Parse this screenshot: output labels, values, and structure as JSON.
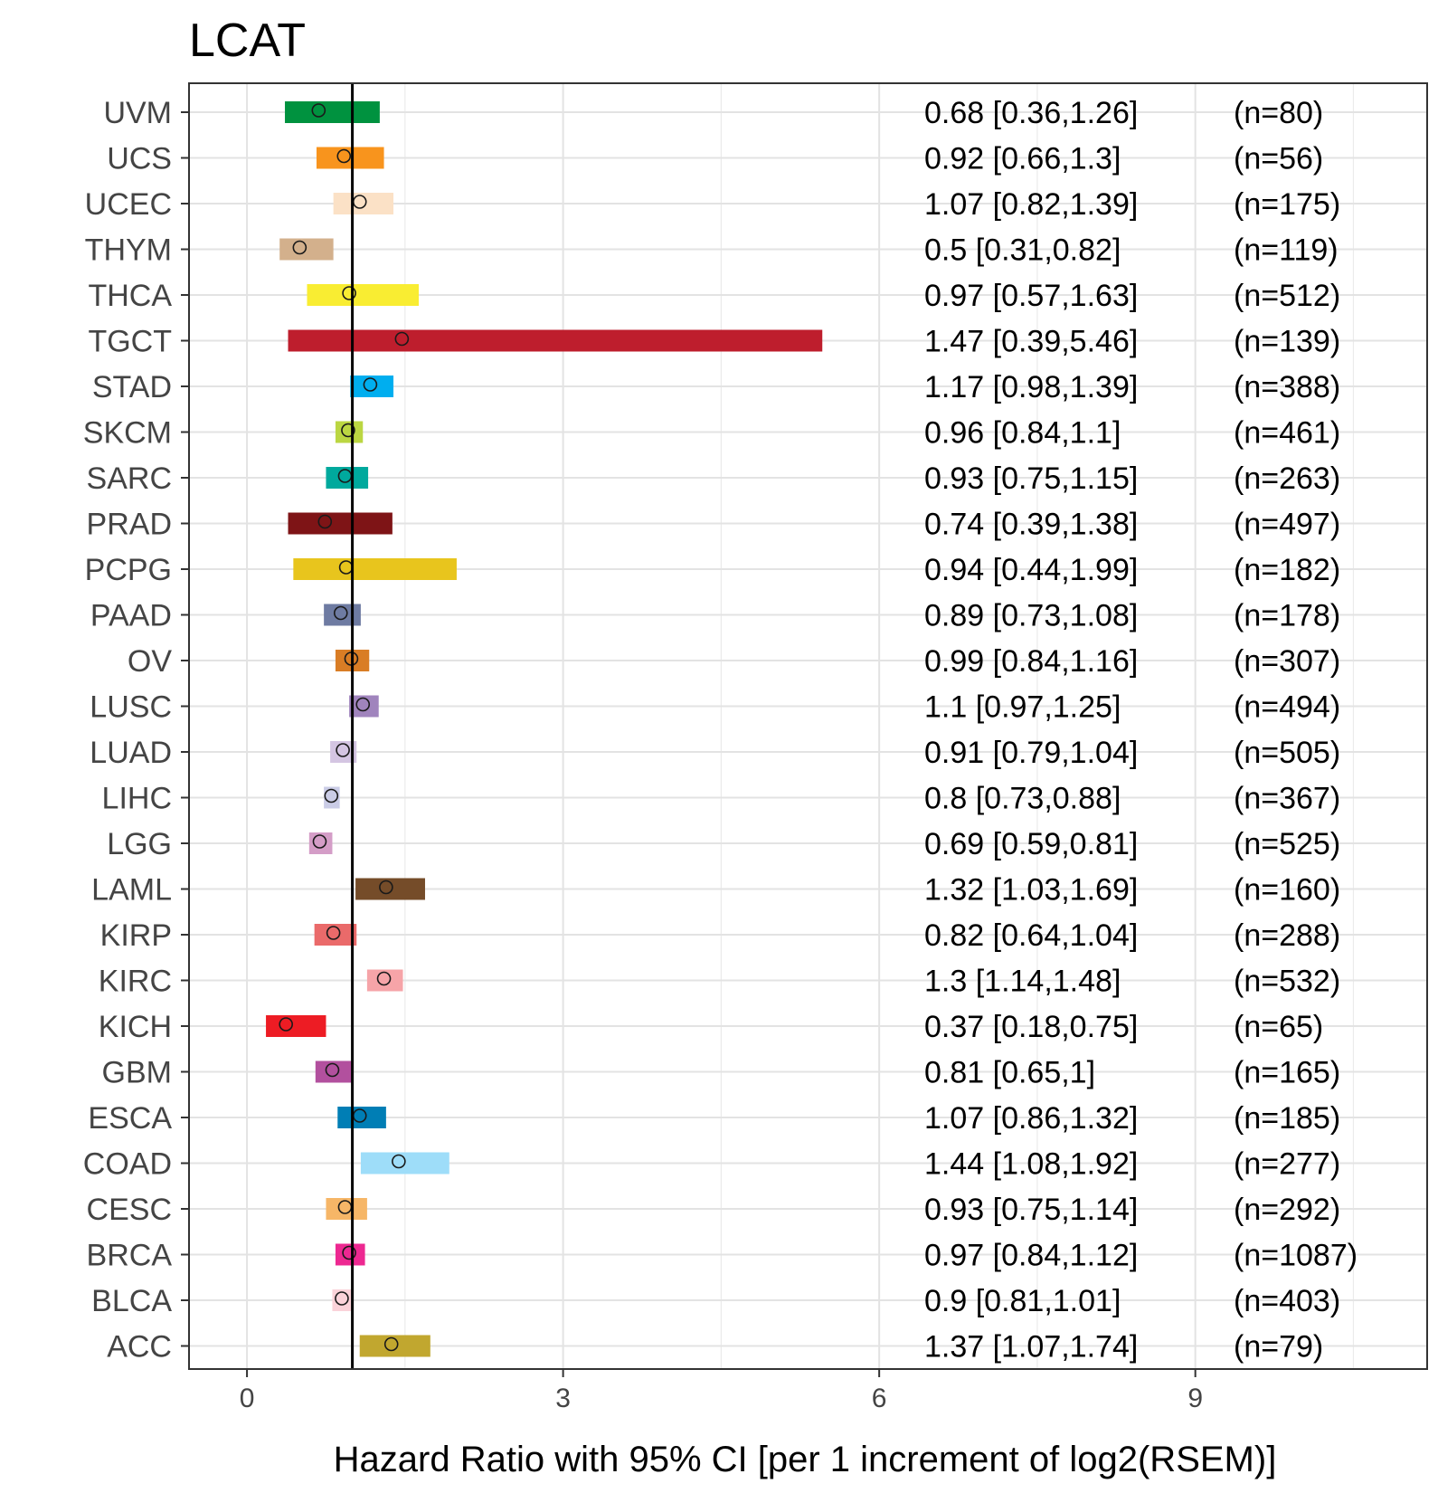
{
  "chart_data": {
    "type": "forest",
    "title": "LCAT",
    "xlabel": "Hazard Ratio with 95% CI [per 1 increment of log2(RSEM)]",
    "ylabel": "",
    "xlim": [
      -0.55,
      11.2
    ],
    "xticks": [
      0,
      3,
      6,
      9
    ],
    "reference_line": 1,
    "grid": true,
    "rows": [
      {
        "label": "UVM",
        "hr": 0.68,
        "lower": 0.36,
        "upper": 1.26,
        "text": "0.68 [0.36,1.26]",
        "n": "(n=80)",
        "color": "#00923F"
      },
      {
        "label": "UCS",
        "hr": 0.92,
        "lower": 0.66,
        "upper": 1.3,
        "text": "0.92 [0.66,1.3]",
        "n": "(n=56)",
        "color": "#F8941D"
      },
      {
        "label": "UCEC",
        "hr": 1.07,
        "lower": 0.82,
        "upper": 1.39,
        "text": "1.07 [0.82,1.39]",
        "n": "(n=175)",
        "color": "#FBE1C6"
      },
      {
        "label": "THYM",
        "hr": 0.5,
        "lower": 0.31,
        "upper": 0.82,
        "text": "0.5 [0.31,0.82]",
        "n": "(n=119)",
        "color": "#D3B08C"
      },
      {
        "label": "THCA",
        "hr": 0.97,
        "lower": 0.57,
        "upper": 1.63,
        "text": "0.97 [0.57,1.63]",
        "n": "(n=512)",
        "color": "#F9ED32"
      },
      {
        "label": "TGCT",
        "hr": 1.47,
        "lower": 0.39,
        "upper": 5.46,
        "text": "1.47 [0.39,5.46]",
        "n": "(n=139)",
        "color": "#BE1E2D"
      },
      {
        "label": "STAD",
        "hr": 1.17,
        "lower": 0.98,
        "upper": 1.39,
        "text": "1.17 [0.98,1.39]",
        "n": "(n=388)",
        "color": "#00AEEF"
      },
      {
        "label": "SKCM",
        "hr": 0.96,
        "lower": 0.84,
        "upper": 1.1,
        "text": "0.96 [0.84,1.1]",
        "n": "(n=461)",
        "color": "#BBD642"
      },
      {
        "label": "SARC",
        "hr": 0.93,
        "lower": 0.75,
        "upper": 1.15,
        "text": "0.93 [0.75,1.15]",
        "n": "(n=263)",
        "color": "#00A99D"
      },
      {
        "label": "PRAD",
        "hr": 0.74,
        "lower": 0.39,
        "upper": 1.38,
        "text": "0.74 [0.39,1.38]",
        "n": "(n=497)",
        "color": "#7E1416"
      },
      {
        "label": "PCPG",
        "hr": 0.94,
        "lower": 0.44,
        "upper": 1.99,
        "text": "0.94 [0.44,1.99]",
        "n": "(n=182)",
        "color": "#E8C51D"
      },
      {
        "label": "PAAD",
        "hr": 0.89,
        "lower": 0.73,
        "upper": 1.08,
        "text": "0.89 [0.73,1.08]",
        "n": "(n=178)",
        "color": "#6E7BA2"
      },
      {
        "label": "OV",
        "hr": 0.99,
        "lower": 0.84,
        "upper": 1.16,
        "text": "0.99 [0.84,1.16]",
        "n": "(n=307)",
        "color": "#D97D25"
      },
      {
        "label": "LUSC",
        "hr": 1.1,
        "lower": 0.97,
        "upper": 1.25,
        "text": "1.1 [0.97,1.25]",
        "n": "(n=494)",
        "color": "#A084BD"
      },
      {
        "label": "LUAD",
        "hr": 0.91,
        "lower": 0.79,
        "upper": 1.04,
        "text": "0.91 [0.79,1.04]",
        "n": "(n=505)",
        "color": "#D4C5E2"
      },
      {
        "label": "LIHC",
        "hr": 0.8,
        "lower": 0.73,
        "upper": 0.88,
        "text": "0.8 [0.73,0.88]",
        "n": "(n=367)",
        "color": "#CACCE6"
      },
      {
        "label": "LGG",
        "hr": 0.69,
        "lower": 0.59,
        "upper": 0.81,
        "text": "0.69 [0.59,0.81]",
        "n": "(n=525)",
        "color": "#D49DC7"
      },
      {
        "label": "LAML",
        "hr": 1.32,
        "lower": 1.03,
        "upper": 1.69,
        "text": "1.32 [1.03,1.69]",
        "n": "(n=160)",
        "color": "#754C29"
      },
      {
        "label": "KIRP",
        "hr": 0.82,
        "lower": 0.64,
        "upper": 1.04,
        "text": "0.82 [0.64,1.04]",
        "n": "(n=288)",
        "color": "#EA6A6A"
      },
      {
        "label": "KIRC",
        "hr": 1.3,
        "lower": 1.14,
        "upper": 1.48,
        "text": "1.3 [1.14,1.48]",
        "n": "(n=532)",
        "color": "#F6A4A8"
      },
      {
        "label": "KICH",
        "hr": 0.37,
        "lower": 0.18,
        "upper": 0.75,
        "text": "0.37 [0.18,0.75]",
        "n": "(n=65)",
        "color": "#ED1C24"
      },
      {
        "label": "GBM",
        "hr": 0.81,
        "lower": 0.65,
        "upper": 1,
        "text": "0.81 [0.65,1]",
        "n": "(n=165)",
        "color": "#B2509E"
      },
      {
        "label": "ESCA",
        "hr": 1.07,
        "lower": 0.86,
        "upper": 1.32,
        "text": "1.07 [0.86,1.32]",
        "n": "(n=185)",
        "color": "#007EB5"
      },
      {
        "label": "COAD",
        "hr": 1.44,
        "lower": 1.08,
        "upper": 1.92,
        "text": "1.44 [1.08,1.92]",
        "n": "(n=277)",
        "color": "#9EDDF9"
      },
      {
        "label": "CESC",
        "hr": 0.93,
        "lower": 0.75,
        "upper": 1.14,
        "text": "0.93 [0.75,1.14]",
        "n": "(n=292)",
        "color": "#F6B667"
      },
      {
        "label": "BRCA",
        "hr": 0.97,
        "lower": 0.84,
        "upper": 1.12,
        "text": "0.97 [0.84,1.12]",
        "n": "(n=1087)",
        "color": "#ED2891"
      },
      {
        "label": "BLCA",
        "hr": 0.9,
        "lower": 0.81,
        "upper": 1.01,
        "text": "0.9 [0.81,1.01]",
        "n": "(n=403)",
        "color": "#FAD2D9"
      },
      {
        "label": "ACC",
        "hr": 1.37,
        "lower": 1.07,
        "upper": 1.74,
        "text": "1.37 [1.07,1.74]",
        "n": "(n=79)",
        "color": "#C1A72F"
      }
    ]
  }
}
